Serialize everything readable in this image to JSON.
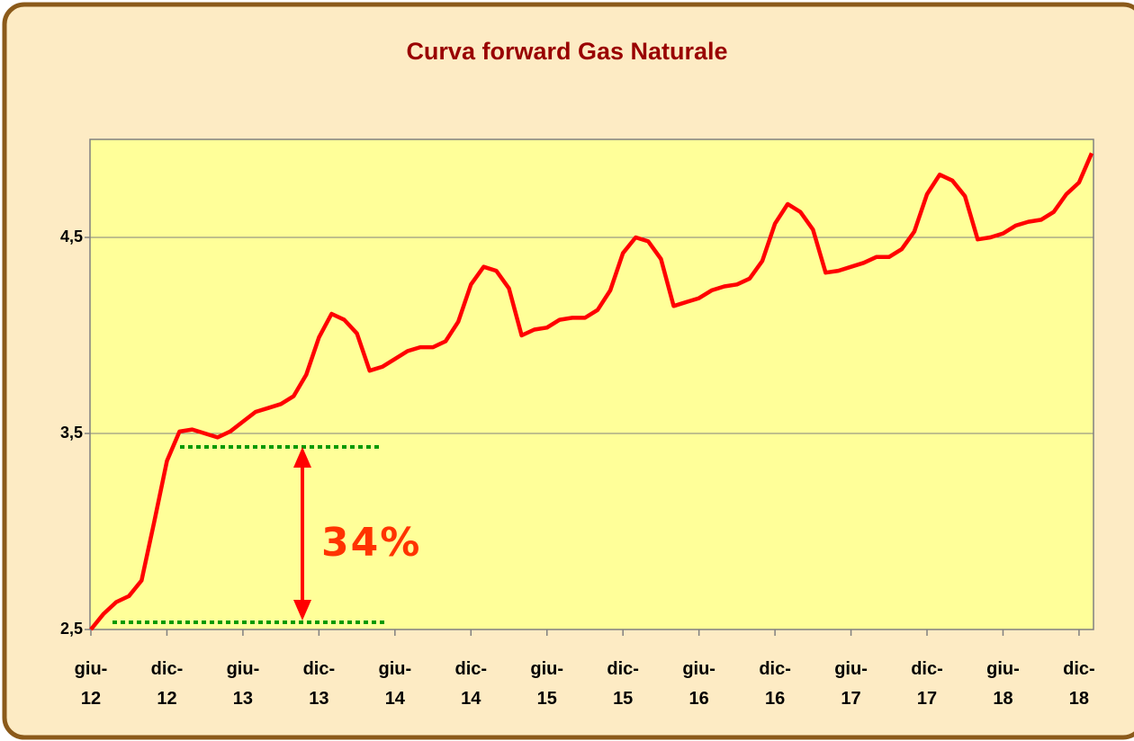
{
  "chart_data": {
    "type": "line",
    "title": "Curva forward Gas Naturale",
    "categories": [
      "giu-12",
      null,
      null,
      null,
      null,
      null,
      "dic-12",
      null,
      null,
      null,
      null,
      null,
      "giu-13",
      null,
      null,
      null,
      null,
      null,
      "dic-13",
      null,
      null,
      null,
      null,
      null,
      "giu-14",
      null,
      null,
      null,
      null,
      null,
      "dic-14",
      null,
      null,
      null,
      null,
      null,
      "giu-15",
      null,
      null,
      null,
      null,
      null,
      "dic-15",
      null,
      null,
      null,
      null,
      null,
      "giu-16",
      null,
      null,
      null,
      null,
      null,
      "dic-16",
      null,
      null,
      null,
      null,
      null,
      "giu-17",
      null,
      null,
      null,
      null,
      null,
      "dic-17",
      null,
      null,
      null,
      null,
      null,
      "giu-18",
      null,
      null,
      null,
      null,
      null,
      "dic-18",
      null
    ],
    "series": [
      {
        "color": "#ff0000",
        "values": [
          2.5,
          2.58,
          2.64,
          2.67,
          2.75,
          3.05,
          3.36,
          3.51,
          3.52,
          3.5,
          3.48,
          3.51,
          3.56,
          3.61,
          3.63,
          3.65,
          3.69,
          3.8,
          3.99,
          4.11,
          4.08,
          4.01,
          3.82,
          3.84,
          3.88,
          3.92,
          3.94,
          3.94,
          3.97,
          4.07,
          4.26,
          4.35,
          4.33,
          4.24,
          4.0,
          4.03,
          4.04,
          4.08,
          4.09,
          4.09,
          4.13,
          4.23,
          4.42,
          4.5,
          4.48,
          4.39,
          4.15,
          4.17,
          4.19,
          4.23,
          4.25,
          4.26,
          4.29,
          4.38,
          4.57,
          4.67,
          4.63,
          4.54,
          4.32,
          4.33,
          4.35,
          4.37,
          4.4,
          4.4,
          4.44,
          4.53,
          4.72,
          4.82,
          4.79,
          4.71,
          4.49,
          4.5,
          4.52,
          4.56,
          4.58,
          4.59,
          4.63,
          4.72,
          4.78,
          4.93
        ]
      }
    ],
    "ylim": [
      2.5,
      5.0
    ],
    "yticks": [
      {
        "value": 2.5,
        "label": "2,5"
      },
      {
        "value": 3.5,
        "label": "3,5"
      },
      {
        "value": 4.5,
        "label": "4,5"
      }
    ],
    "grid": true,
    "annotations": [
      "34%"
    ]
  }
}
